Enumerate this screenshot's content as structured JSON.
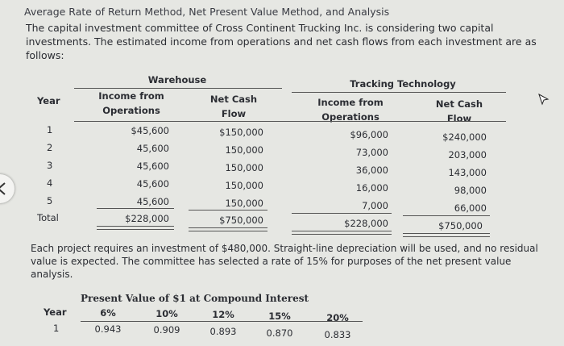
{
  "header": {
    "title": "Average Rate of Return Method, Net Present Value Method, and Analysis",
    "intro": "The capital investment committee of Cross Continent Trucking Inc. is considering two capital investments. The estimated income from operations and net cash flows from each investment are as follows:"
  },
  "table": {
    "year_label": "Year",
    "groups": [
      "Warehouse",
      "Tracking Technology"
    ],
    "col_headers": {
      "income_line1": "Income from",
      "income_line2": "Operations",
      "cash_line1": "Net Cash",
      "cash_line2": "Flow"
    },
    "rows": [
      {
        "year": "1",
        "wh_income": "$45,600",
        "wh_cash": "$150,000",
        "tt_income": "$96,000",
        "tt_cash": "$240,000"
      },
      {
        "year": "2",
        "wh_income": "45,600",
        "wh_cash": "150,000",
        "tt_income": "73,000",
        "tt_cash": "203,000"
      },
      {
        "year": "3",
        "wh_income": "45,600",
        "wh_cash": "150,000",
        "tt_income": "36,000",
        "tt_cash": "143,000"
      },
      {
        "year": "4",
        "wh_income": "45,600",
        "wh_cash": "150,000",
        "tt_income": "16,000",
        "tt_cash": "98,000"
      },
      {
        "year": "5",
        "wh_income": "45,600",
        "wh_cash": "150,000",
        "tt_income": "7,000",
        "tt_cash": "66,000"
      }
    ],
    "total": {
      "label": "Total",
      "wh_income": "$228,000",
      "wh_cash": "$750,000",
      "tt_income": "$228,000",
      "tt_cash": "$750,000"
    }
  },
  "note": "Each project requires an investment of $480,000. Straight-line depreciation will be used, and no residual value is expected. The committee has selected a rate of 15% for purposes of the net present value analysis.",
  "pv_table": {
    "title": "Present Value of $1 at Compound Interest",
    "year_label": "Year",
    "rates": [
      "6%",
      "10%",
      "12%",
      "15%",
      "20%"
    ],
    "row": {
      "year": "1",
      "values": [
        "0.943",
        "0.909",
        "0.893",
        "0.870",
        "0.833"
      ]
    }
  }
}
